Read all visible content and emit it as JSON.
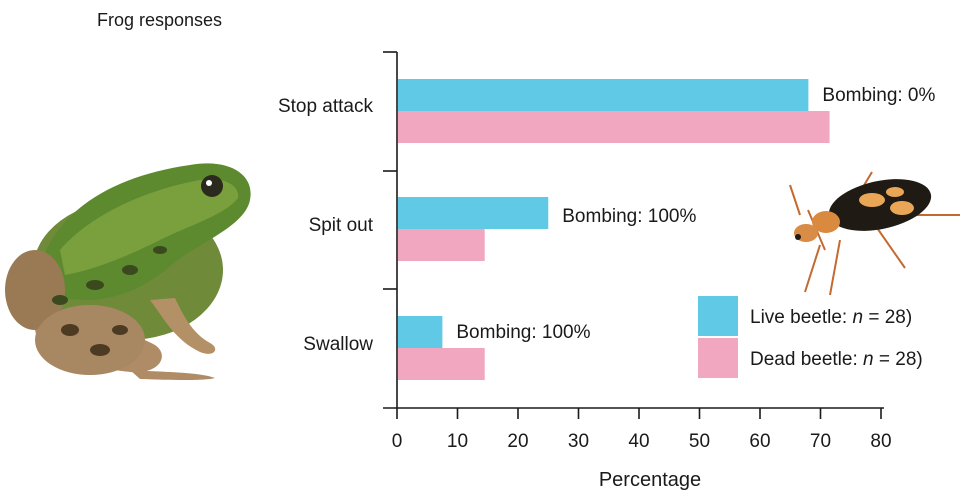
{
  "chart_data": {
    "type": "bar",
    "orientation": "horizontal",
    "title": "Frog responses",
    "xlabel": "Percentage",
    "ylabel": "",
    "xlim": [
      0,
      80
    ],
    "x_ticks": [
      0,
      10,
      20,
      30,
      40,
      50,
      60,
      70,
      80
    ],
    "categories": [
      "Stop attack",
      "Spit out",
      "Swallow"
    ],
    "series": [
      {
        "name_prefix": "Live beetle: ",
        "name_n": "n",
        "name_suffix": " = 28)",
        "color": "#5FC9E6",
        "values": [
          68,
          25,
          7.5
        ]
      },
      {
        "name_prefix": "Dead beetle: ",
        "name_n": "n",
        "name_suffix": " = 28)",
        "color": "#F2A7C0",
        "values": [
          71.5,
          14.5,
          14.5
        ]
      }
    ],
    "annotations": [
      "Bombing: 0%",
      "Bombing: 100%",
      "Bombing: 100%"
    ],
    "grid": false,
    "legend_position": "lower-right"
  },
  "images": {
    "frog": "frog-photo",
    "beetle": "bombardier-beetle-photo"
  }
}
